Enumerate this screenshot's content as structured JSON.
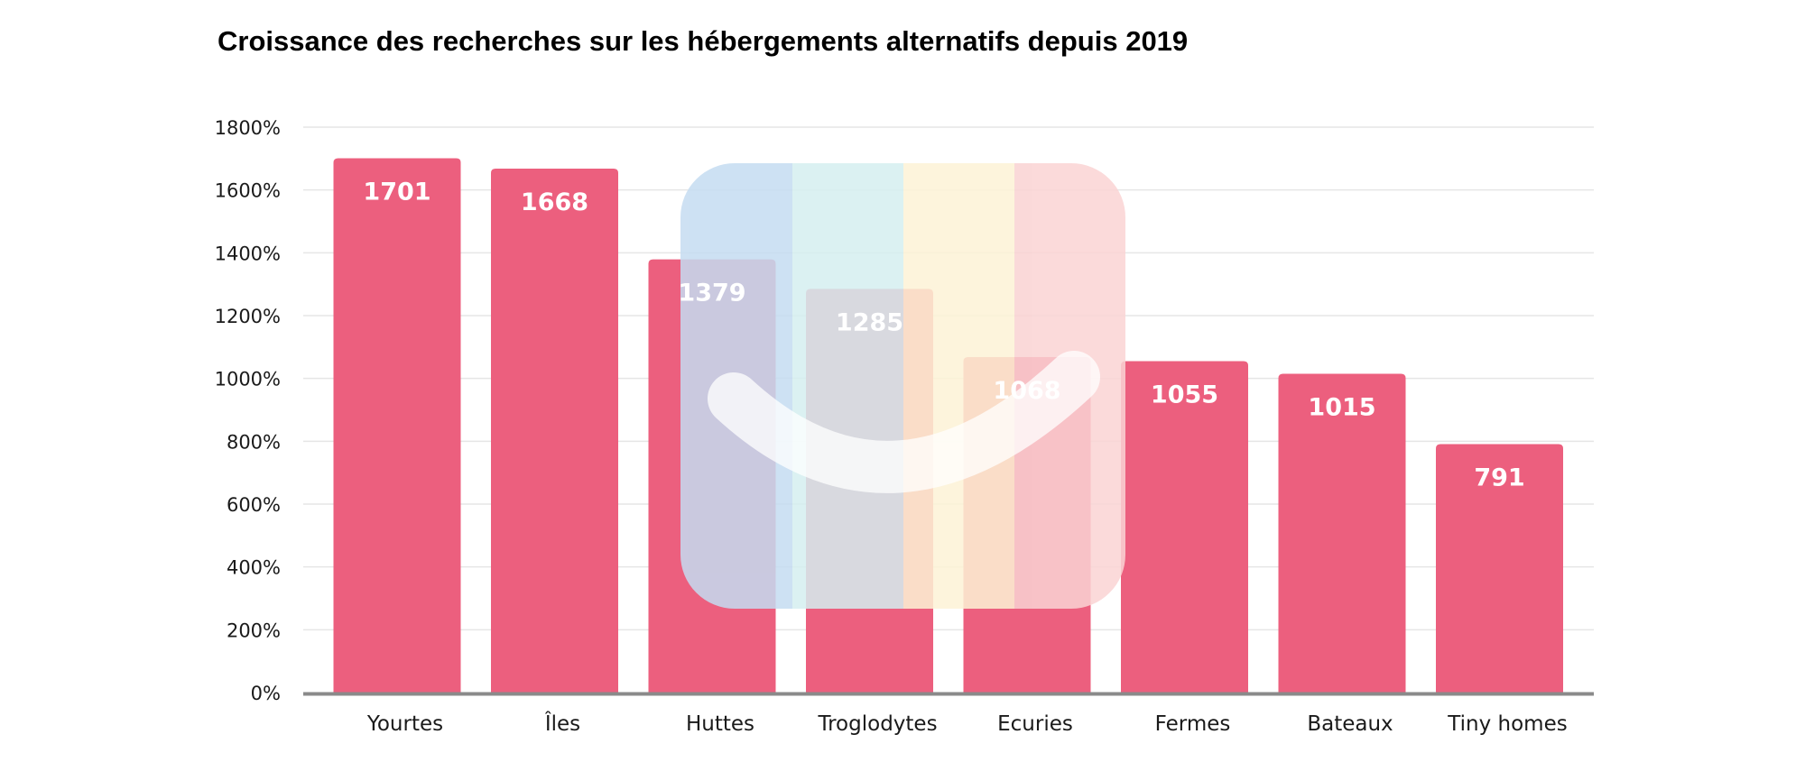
{
  "chart_data": {
    "type": "bar",
    "title": "Croissance des recherches sur les hébergements alternatifs depuis 2019",
    "categories": [
      "Yourtes",
      "Îles",
      "Huttes",
      "Troglodytes",
      "Ecuries",
      "Fermes",
      "Bateaux",
      "Tiny homes"
    ],
    "values": [
      1701,
      1668,
      1379,
      1285,
      1068,
      1055,
      1015,
      791
    ],
    "data_labels": [
      "1701",
      "1668",
      "1379",
      "1285",
      "1068",
      "1055",
      "1015",
      "791"
    ],
    "yticks": [
      0,
      200,
      400,
      600,
      800,
      1000,
      1200,
      1400,
      1600,
      1800
    ],
    "ytick_labels": [
      "0%",
      "200%",
      "400%",
      "600%",
      "800%",
      "1000%",
      "1200%",
      "1400%",
      "1600%",
      "1800%"
    ],
    "ylim": [
      0,
      1800
    ],
    "grid": true,
    "bar_color": "#ec5f7e",
    "legend": "none",
    "watermark": {
      "name": "airbnb-style-logo-icon",
      "stripe_colors": [
        "#c5dcf1",
        "#d5eff0",
        "#fdf3d6",
        "#fad3d3"
      ],
      "smile_color": "#ffffff"
    }
  }
}
